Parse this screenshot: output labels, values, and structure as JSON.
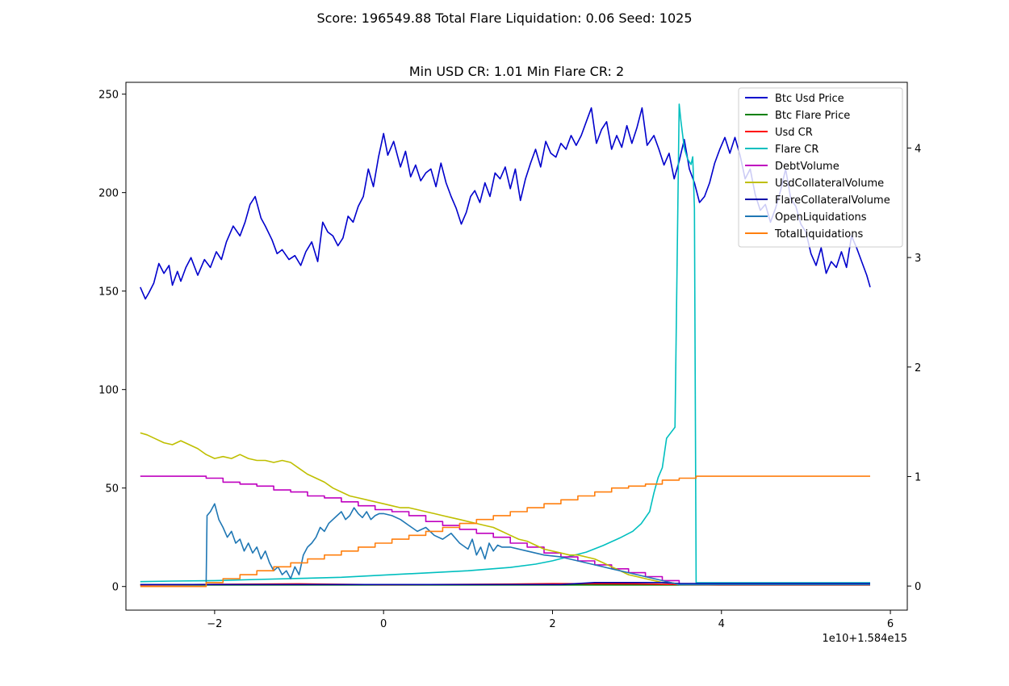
{
  "figure": {
    "suptitle": "Score: 196549.88 Total Flare Liquidation: 0.06 Seed: 1025"
  },
  "chart_data": {
    "type": "line",
    "title": "Min USD CR: 1.01 Min Flare CR: 2",
    "xlabel": "",
    "ylabel_left": "",
    "ylabel_right": "",
    "x_offset_label": "1e10+1.584e15",
    "xlim": [
      -3.05,
      6.2
    ],
    "ylim_left": [
      -12,
      256
    ],
    "ylim_right": [
      -0.22,
      4.6
    ],
    "x_ticks": [
      -2,
      0,
      2,
      4,
      6
    ],
    "x_tick_labels": [
      "−2",
      "0",
      "2",
      "4",
      "6"
    ],
    "y_left_ticks": [
      0,
      50,
      100,
      150,
      200,
      250
    ],
    "y_left_tick_labels": [
      "0",
      "50",
      "100",
      "150",
      "200",
      "250"
    ],
    "y_right_ticks": [
      0,
      1,
      2,
      3,
      4
    ],
    "y_right_tick_labels": [
      "0",
      "1",
      "2",
      "3",
      "4"
    ],
    "grid": false,
    "legend_placement": "upper right",
    "series": [
      {
        "name": "Btc Usd Price",
        "color": "#0000cc",
        "axis": "left",
        "x": [
          -2.88,
          -2.82,
          -2.78,
          -2.72,
          -2.66,
          -2.6,
          -2.54,
          -2.5,
          -2.44,
          -2.4,
          -2.34,
          -2.28,
          -2.2,
          -2.12,
          -2.05,
          -1.98,
          -1.92,
          -1.86,
          -1.78,
          -1.7,
          -1.64,
          -1.58,
          -1.52,
          -1.45,
          -1.4,
          -1.32,
          -1.26,
          -1.2,
          -1.12,
          -1.05,
          -0.98,
          -0.92,
          -0.85,
          -0.78,
          -0.72,
          -0.66,
          -0.6,
          -0.54,
          -0.48,
          -0.42,
          -0.36,
          -0.3,
          -0.24,
          -0.18,
          -0.12,
          -0.06,
          0.0,
          0.05,
          0.12,
          0.2,
          0.26,
          0.32,
          0.38,
          0.44,
          0.5,
          0.56,
          0.62,
          0.68,
          0.74,
          0.8,
          0.86,
          0.92,
          0.98,
          1.03,
          1.08,
          1.14,
          1.2,
          1.26,
          1.32,
          1.38,
          1.44,
          1.5,
          1.56,
          1.62,
          1.68,
          1.74,
          1.8,
          1.86,
          1.92,
          1.98,
          2.04,
          2.1,
          2.16,
          2.22,
          2.28,
          2.34,
          2.4,
          2.46,
          2.52,
          2.58,
          2.64,
          2.7,
          2.76,
          2.82,
          2.88,
          2.94,
          3.0,
          3.06,
          3.12,
          3.2,
          3.26,
          3.32,
          3.38,
          3.44,
          3.5,
          3.56,
          3.62,
          3.68,
          3.74,
          3.8,
          3.86,
          3.92,
          3.98,
          4.04,
          4.1,
          4.16,
          4.22,
          4.28,
          4.34,
          4.4,
          4.46,
          4.52,
          4.58,
          4.64,
          4.7,
          4.76,
          4.82,
          4.88,
          4.94,
          5.0,
          5.06,
          5.12,
          5.18,
          5.24,
          5.3,
          5.36,
          5.42,
          5.48,
          5.54,
          5.6,
          5.66,
          5.72,
          5.76
        ],
        "values": [
          152,
          146,
          149,
          154,
          164,
          159,
          163,
          153,
          160,
          155,
          162,
          167,
          158,
          166,
          162,
          170,
          166,
          175,
          183,
          178,
          185,
          194,
          198,
          187,
          183,
          176,
          169,
          171,
          166,
          168,
          163,
          170,
          175,
          165,
          185,
          180,
          178,
          173,
          177,
          188,
          185,
          193,
          198,
          212,
          203,
          218,
          230,
          219,
          226,
          213,
          221,
          208,
          214,
          206,
          210,
          212,
          203,
          215,
          205,
          198,
          192,
          184,
          190,
          198,
          201,
          195,
          205,
          198,
          210,
          207,
          213,
          202,
          212,
          196,
          207,
          215,
          222,
          213,
          226,
          220,
          218,
          225,
          222,
          229,
          224,
          229,
          236,
          243,
          225,
          232,
          236,
          222,
          229,
          223,
          234,
          225,
          233,
          243,
          224,
          229,
          222,
          214,
          220,
          207,
          216,
          227,
          212,
          205,
          195,
          198,
          205,
          215,
          222,
          228,
          220,
          228,
          219,
          207,
          212,
          199,
          191,
          194,
          185,
          192,
          201,
          212,
          197,
          193,
          184,
          180,
          169,
          163,
          172,
          159,
          165,
          162,
          170,
          162,
          178,
          172,
          165,
          158,
          152
        ]
      },
      {
        "name": "Btc Flare Price",
        "color": "#008000",
        "axis": "right",
        "x": [
          -2.88,
          5.76
        ],
        "values": [
          0.01,
          0.01
        ]
      },
      {
        "name": "Usd CR",
        "color": "#ff0000",
        "axis": "right",
        "x": [
          -2.88,
          -2.0,
          -1.0,
          0.0,
          1.0,
          2.0,
          3.0,
          3.6,
          4.0,
          5.0,
          5.76
        ],
        "values": [
          0.01,
          0.015,
          0.02,
          0.012,
          0.015,
          0.022,
          0.02,
          0.012,
          0.01,
          0.01,
          0.01
        ]
      },
      {
        "name": "Flare CR",
        "color": "#00bfbf",
        "axis": "right",
        "x": [
          -2.88,
          -2.5,
          -2.0,
          -1.5,
          -1.0,
          -0.5,
          0.0,
          0.5,
          1.0,
          1.5,
          1.8,
          2.0,
          2.2,
          2.4,
          2.6,
          2.8,
          2.95,
          3.05,
          3.15,
          3.2,
          3.25,
          3.3,
          3.35,
          3.4,
          3.45,
          3.5,
          3.52,
          3.56,
          3.6,
          3.64,
          3.66,
          3.68,
          3.7,
          3.72,
          3.76,
          4.0,
          4.5,
          5.0,
          5.5,
          5.76
        ],
        "values": [
          0.04,
          0.045,
          0.05,
          0.06,
          0.07,
          0.08,
          0.1,
          0.12,
          0.14,
          0.17,
          0.2,
          0.23,
          0.27,
          0.31,
          0.37,
          0.44,
          0.5,
          0.57,
          0.68,
          0.85,
          0.99,
          1.08,
          1.35,
          1.4,
          1.45,
          4.4,
          4.25,
          4.0,
          3.9,
          3.85,
          3.92,
          3.45,
          0.03,
          0.03,
          0.03,
          0.03,
          0.03,
          0.03,
          0.03,
          0.03
        ]
      },
      {
        "name": "DebtVolume",
        "color": "#bf00bf",
        "axis": "left",
        "x": [
          -2.88,
          -2.1,
          -2.1,
          -1.9,
          -1.9,
          -1.7,
          -1.7,
          -1.5,
          -1.5,
          -1.3,
          -1.3,
          -1.1,
          -1.1,
          -0.9,
          -0.9,
          -0.7,
          -0.7,
          -0.5,
          -0.5,
          -0.3,
          -0.3,
          -0.1,
          -0.1,
          0.1,
          0.1,
          0.3,
          0.3,
          0.5,
          0.5,
          0.7,
          0.7,
          0.9,
          0.9,
          1.1,
          1.1,
          1.3,
          1.3,
          1.5,
          1.5,
          1.7,
          1.7,
          1.9,
          1.9,
          2.1,
          2.1,
          2.3,
          2.3,
          2.5,
          2.5,
          2.7,
          2.7,
          2.9,
          2.9,
          3.1,
          3.1,
          3.3,
          3.3,
          3.5,
          3.5,
          5.76
        ],
        "values": [
          56,
          56,
          55,
          55,
          53,
          53,
          52,
          52,
          51,
          51,
          49,
          49,
          48,
          48,
          46,
          46,
          45,
          45,
          43,
          43,
          41,
          41,
          39,
          39,
          38,
          38,
          36,
          36,
          33,
          33,
          31,
          31,
          29,
          29,
          27,
          27,
          25,
          25,
          22,
          22,
          20,
          20,
          17,
          17,
          15,
          15,
          13,
          13,
          11,
          11,
          9,
          9,
          7,
          7,
          5,
          5,
          3,
          3,
          1,
          1
        ]
      },
      {
        "name": "UsdCollateralVolume",
        "color": "#bfbf00",
        "axis": "left",
        "x": [
          -2.88,
          -2.8,
          -2.7,
          -2.6,
          -2.5,
          -2.4,
          -2.3,
          -2.2,
          -2.1,
          -2.0,
          -1.9,
          -1.8,
          -1.7,
          -1.6,
          -1.5,
          -1.4,
          -1.3,
          -1.2,
          -1.1,
          -1.0,
          -0.9,
          -0.8,
          -0.7,
          -0.6,
          -0.5,
          -0.4,
          -0.3,
          -0.2,
          -0.1,
          0.0,
          0.1,
          0.2,
          0.3,
          0.4,
          0.5,
          0.6,
          0.7,
          0.8,
          0.9,
          1.0,
          1.1,
          1.2,
          1.3,
          1.4,
          1.5,
          1.6,
          1.7,
          1.8,
          1.9,
          2.0,
          2.1,
          2.2,
          2.3,
          2.4,
          2.5,
          2.6,
          2.7,
          2.8,
          2.9,
          3.0,
          3.1,
          3.2,
          3.3,
          3.4,
          3.5,
          5.76
        ],
        "values": [
          78,
          77,
          75,
          73,
          72,
          74,
          72,
          70,
          67,
          65,
          66,
          65,
          67,
          65,
          64,
          64,
          63,
          64,
          63,
          60,
          57,
          55,
          53,
          50,
          48,
          46,
          45,
          44,
          43,
          42,
          41,
          40,
          40,
          39,
          38,
          37,
          36,
          35,
          34,
          33,
          32,
          31,
          30,
          28,
          26,
          24,
          23,
          21,
          19,
          18,
          17,
          16,
          16,
          15,
          14,
          12,
          10,
          8,
          6,
          5,
          4,
          3,
          2,
          2,
          1,
          1
        ]
      },
      {
        "name": "FlareCollateralVolume",
        "color": "#0000a8",
        "axis": "left",
        "x": [
          -2.88,
          -2.0,
          -1.0,
          0.0,
          0.5,
          0.5,
          0.9,
          0.9,
          1.3,
          1.3,
          1.7,
          1.7,
          2.1,
          2.1,
          2.5,
          2.5,
          2.9,
          2.9,
          3.1,
          3.1,
          3.3,
          3.3,
          3.5,
          3.5,
          5.76
        ],
        "values": [
          1,
          1,
          1,
          1,
          1,
          1,
          1,
          1,
          1,
          1,
          1,
          1,
          1,
          1,
          2,
          2,
          2,
          2,
          2,
          2,
          2,
          2,
          1.5,
          1.5,
          1.5
        ]
      },
      {
        "name": "OpenLiquidations",
        "color": "#1f77b4",
        "axis": "left",
        "x": [
          -2.1,
          -2.09,
          -2.05,
          -2.0,
          -1.95,
          -1.9,
          -1.85,
          -1.8,
          -1.75,
          -1.7,
          -1.65,
          -1.6,
          -1.55,
          -1.5,
          -1.45,
          -1.4,
          -1.35,
          -1.3,
          -1.25,
          -1.2,
          -1.15,
          -1.1,
          -1.05,
          -1.0,
          -0.95,
          -0.9,
          -0.85,
          -0.8,
          -0.75,
          -0.7,
          -0.65,
          -0.6,
          -0.55,
          -0.5,
          -0.45,
          -0.4,
          -0.35,
          -0.3,
          -0.25,
          -0.2,
          -0.15,
          -0.1,
          -0.05,
          0.0,
          0.1,
          0.2,
          0.3,
          0.4,
          0.5,
          0.6,
          0.7,
          0.8,
          0.9,
          1.0,
          1.05,
          1.1,
          1.15,
          1.2,
          1.25,
          1.3,
          1.35,
          1.4,
          1.5,
          1.7,
          1.9,
          2.1,
          2.3,
          2.5,
          2.7,
          2.9,
          3.1,
          3.3,
          3.5,
          3.5,
          5.76
        ],
        "values": [
          2,
          36,
          38,
          42,
          34,
          30,
          25,
          28,
          22,
          24,
          18,
          22,
          17,
          20,
          14,
          18,
          12,
          8,
          10,
          6,
          8,
          4,
          10,
          6,
          16,
          20,
          22,
          25,
          30,
          28,
          32,
          34,
          36,
          38,
          34,
          36,
          40,
          37,
          35,
          38,
          34,
          36,
          37,
          37,
          36,
          34,
          31,
          28,
          30,
          26,
          24,
          27,
          22,
          19,
          24,
          16,
          20,
          14,
          22,
          18,
          21,
          20,
          20,
          18,
          16,
          15,
          13,
          11,
          9,
          7,
          5,
          3,
          1,
          1,
          1
        ]
      },
      {
        "name": "TotalLiquidations",
        "color": "#ff7f0e",
        "axis": "left",
        "x": [
          -2.88,
          -2.1,
          -2.1,
          -1.9,
          -1.9,
          -1.7,
          -1.7,
          -1.5,
          -1.5,
          -1.3,
          -1.3,
          -1.1,
          -1.1,
          -0.9,
          -0.9,
          -0.7,
          -0.7,
          -0.5,
          -0.5,
          -0.3,
          -0.3,
          -0.1,
          -0.1,
          0.1,
          0.1,
          0.3,
          0.3,
          0.5,
          0.5,
          0.7,
          0.7,
          0.9,
          0.9,
          1.1,
          1.1,
          1.3,
          1.3,
          1.5,
          1.5,
          1.7,
          1.7,
          1.9,
          1.9,
          2.1,
          2.1,
          2.3,
          2.3,
          2.5,
          2.5,
          2.7,
          2.7,
          2.9,
          2.9,
          3.1,
          3.1,
          3.3,
          3.3,
          3.5,
          3.5,
          3.7,
          3.7,
          5.76
        ],
        "values": [
          0,
          0,
          2,
          2,
          4,
          4,
          6,
          6,
          8,
          8,
          10,
          10,
          12,
          12,
          14,
          14,
          16,
          16,
          18,
          18,
          20,
          20,
          22,
          22,
          24,
          24,
          26,
          26,
          28,
          28,
          30,
          30,
          32,
          32,
          34,
          34,
          36,
          36,
          38,
          38,
          40,
          40,
          42,
          42,
          44,
          44,
          46,
          46,
          48,
          48,
          50,
          50,
          51,
          51,
          52,
          52,
          54,
          54,
          55,
          55,
          56,
          56
        ]
      }
    ]
  }
}
